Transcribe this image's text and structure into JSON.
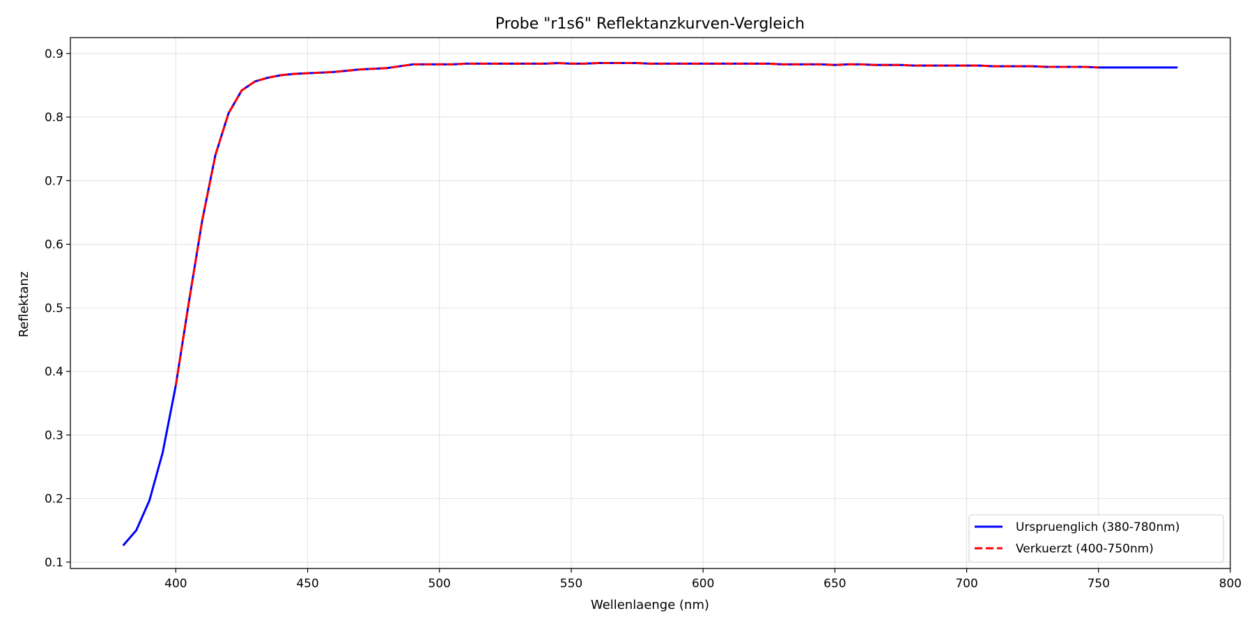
{
  "chart_data": {
    "type": "line",
    "title": "Probe \"r1s6\" Reflektanzkurven-Vergleich",
    "xlabel": "Wellenlaenge (nm)",
    "ylabel": "Reflektanz",
    "xlim": [
      360,
      800
    ],
    "ylim": [
      0.09,
      0.925
    ],
    "xticks": [
      400,
      450,
      500,
      550,
      600,
      650,
      700,
      750,
      800
    ],
    "yticks": [
      0.1,
      0.2,
      0.3,
      0.4,
      0.5,
      0.6,
      0.7,
      0.8,
      0.9
    ],
    "grid": true,
    "legend_position": "lower-right",
    "series": [
      {
        "name": "Urspruenglich (380-780nm)",
        "color": "#0000ff",
        "style": "solid",
        "x": [
          380,
          385,
          390,
          395,
          400,
          405,
          410,
          415,
          420,
          425,
          430,
          435,
          440,
          445,
          450,
          455,
          460,
          465,
          470,
          475,
          480,
          485,
          490,
          495,
          500,
          505,
          510,
          515,
          520,
          525,
          530,
          535,
          540,
          545,
          550,
          555,
          560,
          565,
          570,
          575,
          580,
          585,
          590,
          595,
          600,
          605,
          610,
          615,
          620,
          625,
          630,
          635,
          640,
          645,
          650,
          655,
          660,
          665,
          670,
          675,
          680,
          685,
          690,
          695,
          700,
          705,
          710,
          715,
          720,
          725,
          730,
          735,
          740,
          745,
          750,
          755,
          760,
          765,
          770,
          775,
          780
        ],
        "y": [
          0.126,
          0.15,
          0.197,
          0.272,
          0.378,
          0.51,
          0.637,
          0.74,
          0.806,
          0.842,
          0.856,
          0.862,
          0.866,
          0.868,
          0.869,
          0.87,
          0.871,
          0.873,
          0.875,
          0.876,
          0.877,
          0.88,
          0.883,
          0.883,
          0.883,
          0.883,
          0.884,
          0.884,
          0.884,
          0.884,
          0.884,
          0.884,
          0.884,
          0.885,
          0.884,
          0.884,
          0.885,
          0.885,
          0.885,
          0.885,
          0.884,
          0.884,
          0.884,
          0.884,
          0.884,
          0.884,
          0.884,
          0.884,
          0.884,
          0.884,
          0.883,
          0.883,
          0.883,
          0.883,
          0.882,
          0.883,
          0.883,
          0.882,
          0.882,
          0.882,
          0.881,
          0.881,
          0.881,
          0.881,
          0.881,
          0.881,
          0.88,
          0.88,
          0.88,
          0.88,
          0.879,
          0.879,
          0.879,
          0.879,
          0.878,
          0.878,
          0.878,
          0.878,
          0.878,
          0.878,
          0.878
        ]
      },
      {
        "name": "Verkuerzt (400-750nm)",
        "color": "#ff0000",
        "style": "dashed",
        "x": [
          400,
          405,
          410,
          415,
          420,
          425,
          430,
          435,
          440,
          445,
          450,
          455,
          460,
          465,
          470,
          475,
          480,
          485,
          490,
          495,
          500,
          505,
          510,
          515,
          520,
          525,
          530,
          535,
          540,
          545,
          550,
          555,
          560,
          565,
          570,
          575,
          580,
          585,
          590,
          595,
          600,
          605,
          610,
          615,
          620,
          625,
          630,
          635,
          640,
          645,
          650,
          655,
          660,
          665,
          670,
          675,
          680,
          685,
          690,
          695,
          700,
          705,
          710,
          715,
          720,
          725,
          730,
          735,
          740,
          745,
          750
        ],
        "y": [
          0.378,
          0.51,
          0.637,
          0.74,
          0.806,
          0.842,
          0.856,
          0.862,
          0.866,
          0.868,
          0.869,
          0.87,
          0.871,
          0.873,
          0.875,
          0.876,
          0.877,
          0.88,
          0.883,
          0.883,
          0.883,
          0.883,
          0.884,
          0.884,
          0.884,
          0.884,
          0.884,
          0.884,
          0.884,
          0.885,
          0.884,
          0.884,
          0.885,
          0.885,
          0.885,
          0.885,
          0.884,
          0.884,
          0.884,
          0.884,
          0.884,
          0.884,
          0.884,
          0.884,
          0.884,
          0.884,
          0.883,
          0.883,
          0.883,
          0.883,
          0.882,
          0.883,
          0.883,
          0.882,
          0.882,
          0.882,
          0.881,
          0.881,
          0.881,
          0.881,
          0.881,
          0.881,
          0.88,
          0.88,
          0.88,
          0.88,
          0.879,
          0.879,
          0.879,
          0.879,
          0.878
        ]
      }
    ]
  }
}
